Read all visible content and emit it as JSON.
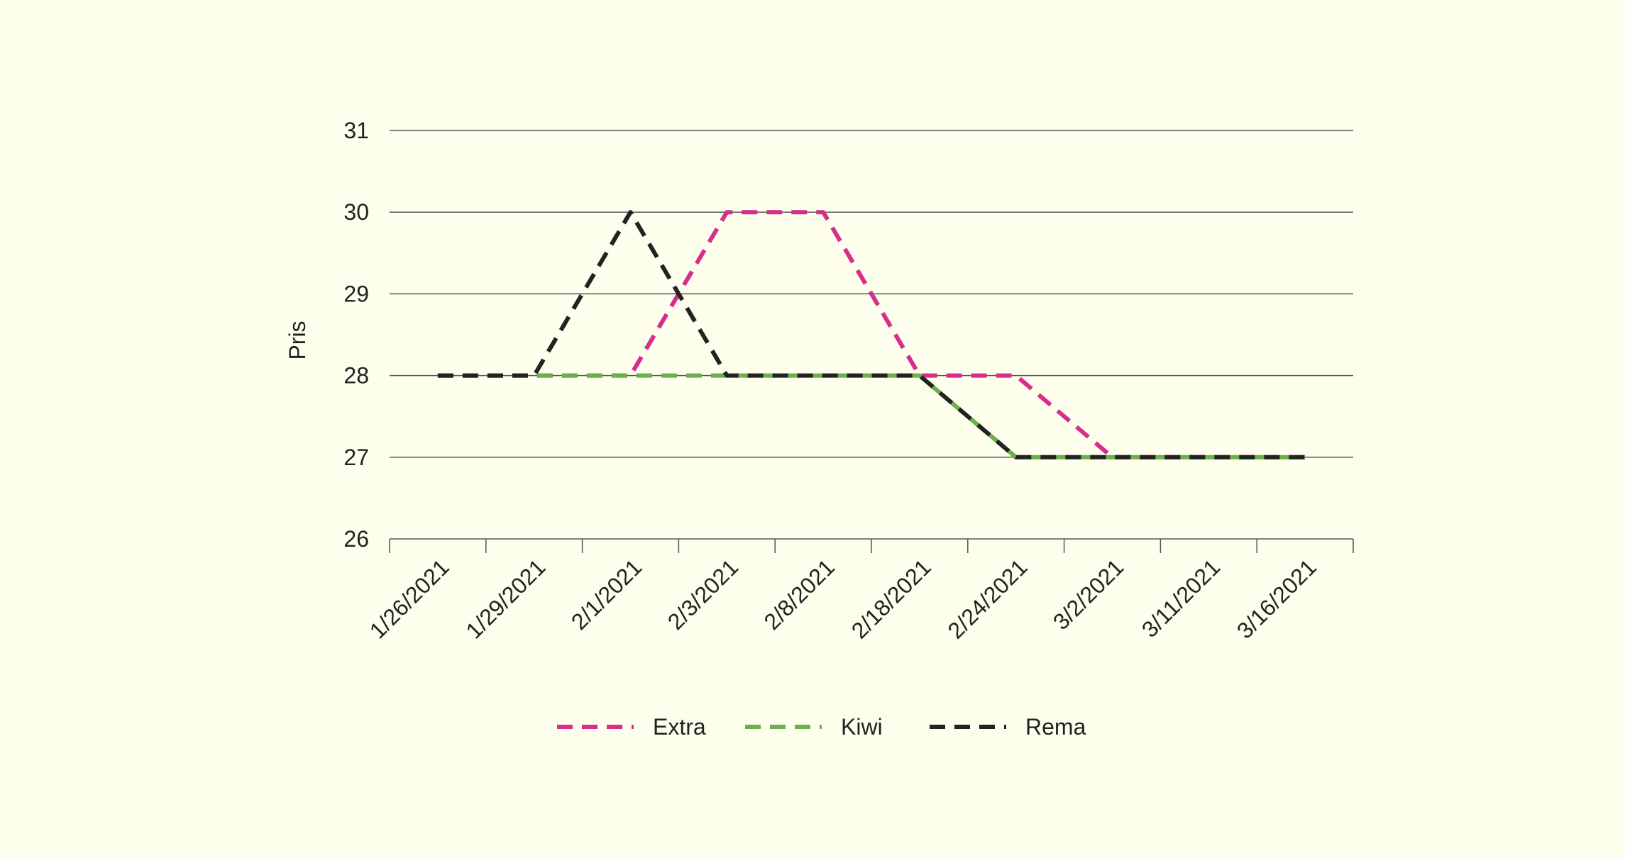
{
  "chart_data": {
    "type": "line",
    "ylabel": "Pris",
    "xlabel": "",
    "ylim": [
      26,
      31
    ],
    "yticks": [
      26,
      27,
      28,
      29,
      30,
      31
    ],
    "categories": [
      "1/26/2021",
      "1/29/2021",
      "2/1/2021",
      "2/3/2021",
      "2/8/2021",
      "2/18/2021",
      "2/24/2021",
      "3/2/2021",
      "3/11/2021",
      "3/16/2021"
    ],
    "grid": true,
    "legend_position": "bottom",
    "series": [
      {
        "name": "Extra",
        "color": "#d62e8a",
        "values": [
          28,
          28,
          28,
          30,
          30,
          28,
          28,
          27,
          27,
          27
        ]
      },
      {
        "name": "Kiwi",
        "color": "#6ab04c",
        "values": [
          28,
          28,
          28,
          28,
          28,
          28,
          27,
          27,
          27,
          27
        ]
      },
      {
        "name": "Rema",
        "color": "#222222",
        "values": [
          28,
          28,
          30,
          28,
          28,
          28,
          27,
          27,
          27,
          27
        ]
      }
    ]
  }
}
